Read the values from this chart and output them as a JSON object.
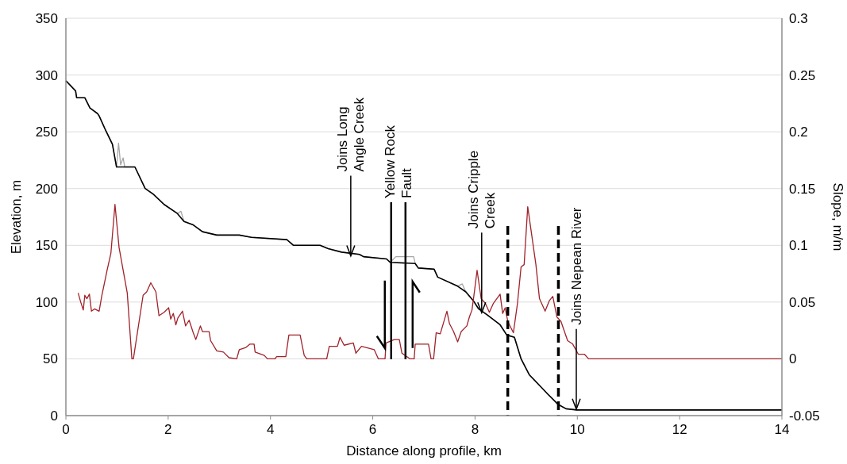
{
  "chart_data": {
    "type": "line",
    "xlabel": "Distance along profile, km",
    "ylabel": "Elevation, m",
    "y2label": "Slope, m/m",
    "xlim": [
      0,
      14
    ],
    "xticks": [
      0,
      2,
      4,
      6,
      8,
      10,
      12,
      14
    ],
    "ylim": [
      0,
      350
    ],
    "yticks": [
      0,
      50,
      100,
      150,
      200,
      250,
      300,
      350
    ],
    "y2lim": [
      -0.05,
      0.3
    ],
    "y2ticks": [
      -0.05,
      0,
      0.05,
      0.1,
      0.15,
      0.2,
      0.25,
      0.3
    ],
    "grid": "y",
    "line_style": "solid",
    "series": [
      {
        "color": "#a6a6a6",
        "x": [
          0,
          0.19,
          0.21,
          0.37,
          0.47,
          0.62,
          0.65,
          0.78,
          0.91,
          0.99,
          1.03,
          1.07,
          1.12,
          1.15,
          1.35,
          1.55,
          1.71,
          1.92,
          2.18,
          2.25,
          2.31,
          2.49,
          2.67,
          2.95,
          3.39,
          3.63,
          4.32,
          4.45,
          4.97,
          5.13,
          5.39,
          5.74,
          5.82,
          6.27,
          6.34,
          6.45,
          6.8,
          6.83,
          6.89,
          7.2,
          7.27,
          7.66,
          7.75,
          7.82,
          7.97,
          8.07,
          8.23,
          8.49,
          8.62,
          8.77,
          8.9,
          9.06,
          9.21,
          9.42,
          9.62,
          9.78,
          9.99,
          14
        ],
        "values": [
          295,
          286,
          280,
          280,
          271,
          266,
          264,
          251,
          239,
          219,
          240,
          221,
          227,
          219,
          219,
          200,
          195,
          186,
          178,
          180,
          171,
          168,
          162,
          159,
          159,
          157,
          155,
          150,
          150,
          147,
          144,
          142,
          140,
          138,
          135,
          140,
          140,
          134,
          130,
          129,
          122,
          114,
          116,
          109,
          101,
          94,
          89,
          80,
          71,
          69,
          50,
          36,
          29,
          19,
          10,
          6,
          5,
          5
        ]
      },
      {
        "color": "#000000",
        "x": [
          0,
          0.19,
          0.21,
          0.37,
          0.47,
          0.62,
          0.65,
          0.78,
          0.91,
          0.99,
          1.35,
          1.55,
          1.71,
          1.92,
          2.18,
          2.31,
          2.49,
          2.67,
          2.95,
          3.39,
          3.63,
          4.32,
          4.45,
          4.97,
          5.13,
          5.39,
          5.74,
          5.82,
          6.27,
          6.34,
          6.83,
          6.89,
          7.2,
          7.27,
          7.66,
          7.82,
          7.97,
          8.07,
          8.23,
          8.49,
          8.62,
          8.77,
          8.9,
          9.06,
          9.21,
          9.42,
          9.62,
          9.78,
          9.99,
          14
        ],
        "values": [
          295,
          286,
          280,
          280,
          271,
          266,
          264,
          251,
          239,
          219,
          219,
          200,
          195,
          186,
          178,
          171,
          168,
          162,
          159,
          159,
          157,
          155,
          150,
          150,
          147,
          144,
          142,
          140,
          138,
          135,
          134,
          130,
          129,
          122,
          114,
          109,
          101,
          94,
          89,
          80,
          71,
          69,
          50,
          36,
          29,
          19,
          10,
          6,
          5,
          5
        ]
      },
      {
        "color": "#a0222a",
        "axis": "y2",
        "x": [
          0.24,
          0.29,
          0.34,
          0.37,
          0.41,
          0.46,
          0.5,
          0.56,
          0.65,
          0.7,
          0.81,
          0.88,
          0.96,
          1.04,
          1.2,
          1.29,
          1.32,
          1.51,
          1.58,
          1.66,
          1.76,
          1.82,
          1.92,
          2.01,
          2.05,
          2.1,
          2.15,
          2.19,
          2.28,
          2.34,
          2.41,
          2.49,
          2.54,
          2.63,
          2.67,
          2.8,
          2.83,
          2.95,
          3.08,
          3.19,
          3.34,
          3.39,
          3.52,
          3.6,
          3.68,
          3.7,
          3.88,
          3.94,
          4.09,
          4.12,
          4.3,
          4.36,
          4.58,
          4.66,
          4.71,
          5.1,
          5.15,
          5.31,
          5.36,
          5.44,
          5.62,
          5.67,
          5.78,
          6.03,
          6.11,
          6.24,
          6.26,
          6.42,
          6.52,
          6.57,
          6.73,
          6.81,
          6.83,
          7.09,
          7.14,
          7.19,
          7.24,
          7.32,
          7.45,
          7.5,
          7.58,
          7.66,
          7.73,
          7.84,
          7.89,
          7.94,
          7.99,
          8.04,
          8.12,
          8.2,
          8.28,
          8.36,
          8.49,
          8.54,
          8.59,
          8.64,
          8.75,
          8.83,
          8.9,
          8.96,
          9.03,
          9.19,
          9.26,
          9.37,
          9.45,
          9.52,
          9.6,
          9.68,
          9.81,
          9.91,
          10.02,
          10.14,
          10.22,
          14
        ],
        "values": [
          0.058,
          0.05,
          0.043,
          0.056,
          0.053,
          0.057,
          0.042,
          0.044,
          0.042,
          0.055,
          0.079,
          0.093,
          0.136,
          0.098,
          0.058,
          0,
          0,
          0.056,
          0.059,
          0.067,
          0.059,
          0.038,
          0.041,
          0.045,
          0.035,
          0.04,
          0.03,
          0.036,
          0.042,
          0.029,
          0.034,
          0.023,
          0.017,
          0.029,
          0.024,
          0.024,
          0.016,
          0.007,
          0.006,
          0.001,
          0,
          0.008,
          0.01,
          0.013,
          0.013,
          0.006,
          0.003,
          0,
          0,
          0.002,
          0.002,
          0.021,
          0.021,
          0.003,
          0,
          0,
          0.011,
          0.011,
          0.019,
          0.012,
          0.014,
          0.005,
          0.011,
          0.008,
          0,
          0,
          0.014,
          0.017,
          0.017,
          0.005,
          0,
          0,
          0.013,
          0.013,
          0,
          0,
          0.023,
          0.022,
          0.042,
          0.031,
          0.024,
          0.015,
          0.024,
          0.029,
          0.037,
          0.043,
          0.06,
          0.078,
          0.053,
          0.049,
          0.041,
          0.049,
          0.057,
          0.04,
          0.045,
          0.033,
          0.023,
          0.049,
          0.081,
          0.083,
          0.134,
          0.083,
          0.053,
          0.042,
          0.051,
          0.055,
          0.037,
          0.033,
          0.016,
          0.013,
          0.004,
          0.004,
          0,
          0
        ]
      }
    ],
    "ref_lines": [
      {
        "axis": "x",
        "value": 6.36,
        "line_style": "solid",
        "color": "#000000"
      },
      {
        "axis": "x",
        "value": 6.64,
        "line_style": "solid",
        "color": "#000000"
      },
      {
        "axis": "x",
        "value": 8.64,
        "line_style": "dashed",
        "color": "#000000"
      },
      {
        "axis": "x",
        "value": 9.63,
        "line_style": "dashed",
        "color": "#000000"
      }
    ],
    "annotations": [
      {
        "text": "Joins Long\nAngle Creek",
        "x": 5.57,
        "y": 140
      },
      "Yellow Rock\nFault",
      {
        "text": "Joins Cripple\nCreek",
        "x": 8.13,
        "y": 90
      },
      {
        "text": "Joins Nepean River",
        "x": 9.98,
        "y": 5
      }
    ]
  }
}
